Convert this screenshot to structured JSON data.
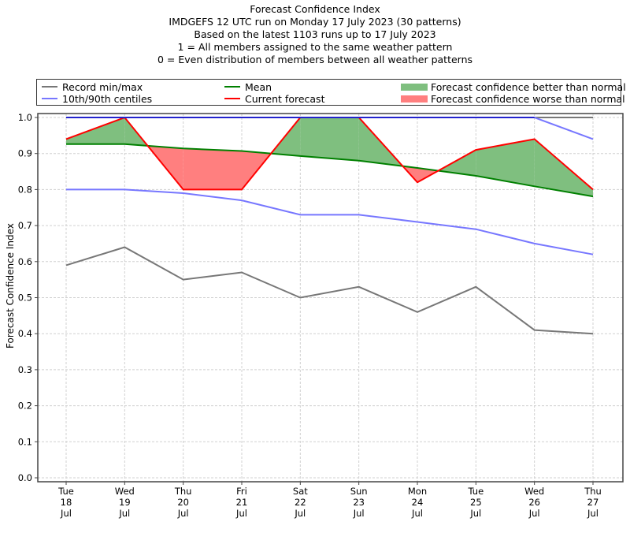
{
  "chart_data": {
    "type": "line",
    "title": "Forecast Confidence Index",
    "subtitle_lines": [
      "IMDGEFS 12 UTC run on Monday 17 July 2023 (30 patterns)",
      "Based on the latest 1103 runs up to 17 July 2023",
      "1 = All members assigned to the same weather pattern",
      "0 = Even distribution of members between all weather patterns"
    ],
    "xlabel": "",
    "ylabel": "Forecast Confidence Index",
    "ylim": [
      0.0,
      1.0
    ],
    "yticks": [
      "0.0",
      "0.1",
      "0.2",
      "0.3",
      "0.4",
      "0.5",
      "0.6",
      "0.7",
      "0.8",
      "0.9",
      "1.0"
    ],
    "grid": true,
    "legend_position": "top",
    "categories": [
      {
        "day": "Tue",
        "date": "18",
        "month": "Jul"
      },
      {
        "day": "Wed",
        "date": "19",
        "month": "Jul"
      },
      {
        "day": "Thu",
        "date": "20",
        "month": "Jul"
      },
      {
        "day": "Fri",
        "date": "21",
        "month": "Jul"
      },
      {
        "day": "Sat",
        "date": "22",
        "month": "Jul"
      },
      {
        "day": "Sun",
        "date": "23",
        "month": "Jul"
      },
      {
        "day": "Mon",
        "date": "24",
        "month": "Jul"
      },
      {
        "day": "Tue",
        "date": "25",
        "month": "Jul"
      },
      {
        "day": "Wed",
        "date": "26",
        "month": "Jul"
      },
      {
        "day": "Thu",
        "date": "27",
        "month": "Jul"
      }
    ],
    "series": [
      {
        "name": "Record max",
        "values": [
          1.0,
          1.0,
          1.0,
          1.0,
          1.0,
          1.0,
          1.0,
          1.0,
          1.0,
          1.0
        ],
        "color": "#777777"
      },
      {
        "name": "Record min",
        "values": [
          0.59,
          0.64,
          0.55,
          0.57,
          0.5,
          0.53,
          0.46,
          0.53,
          0.41,
          0.4
        ],
        "color": "#777777"
      },
      {
        "name": "90th centile",
        "values": [
          1.0,
          1.0,
          1.0,
          1.0,
          1.0,
          1.0,
          1.0,
          1.0,
          1.0,
          0.94
        ],
        "color": "#7777ff"
      },
      {
        "name": "10th centile",
        "values": [
          0.8,
          0.8,
          0.79,
          0.77,
          0.73,
          0.73,
          0.71,
          0.69,
          0.65,
          0.62
        ],
        "color": "#7777ff"
      },
      {
        "name": "Mean",
        "values": [
          0.926,
          0.926,
          0.914,
          0.907,
          0.893,
          0.88,
          0.86,
          0.838,
          0.809,
          0.781
        ],
        "color": "#008000"
      },
      {
        "name": "Current forecast",
        "values": [
          0.94,
          1.0,
          0.8,
          0.8,
          1.0,
          1.0,
          0.82,
          0.91,
          0.94,
          0.8
        ],
        "color": "#ff0000"
      }
    ],
    "legend": [
      {
        "label": "Record min/max",
        "kind": "line",
        "color": "#777777"
      },
      {
        "label": "10th/90th centiles",
        "kind": "line",
        "color": "#7777ff"
      },
      {
        "label": "Mean",
        "kind": "line",
        "color": "#008000"
      },
      {
        "label": "Current forecast",
        "kind": "line",
        "color": "#ff0000"
      },
      {
        "label": "Forecast confidence better than normal",
        "kind": "patch",
        "color": "#7fbf7f"
      },
      {
        "label": "Forecast confidence worse than normal",
        "kind": "patch",
        "color": "#ff7f7f"
      }
    ],
    "fill_colors": {
      "better": "#7fbf7f",
      "worse": "#ff7f7f"
    },
    "centile_top_color": "#2222cc"
  }
}
